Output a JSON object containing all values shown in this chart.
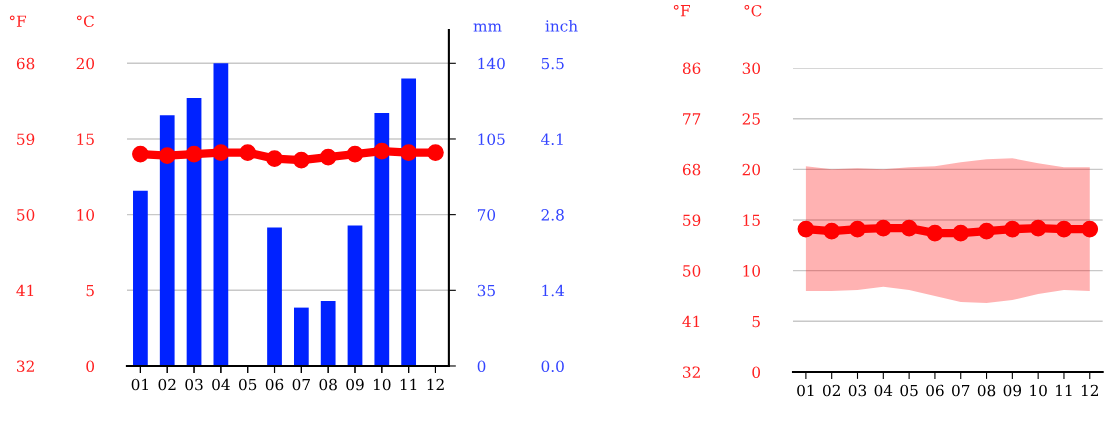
{
  "chart_data": [
    {
      "type": "bar",
      "categories": [
        "01",
        "02",
        "03",
        "04",
        "05",
        "06",
        "07",
        "08",
        "09",
        "10",
        "11",
        "12"
      ],
      "series": [
        {
          "axis": "y2",
          "color": "#0022ff",
          "values": [
            81,
            116,
            124,
            140,
            null,
            64,
            27,
            30,
            65,
            117,
            133,
            null
          ]
        }
      ],
      "y2label": "mm",
      "y2lim": [
        0,
        155.4
      ],
      "y2ticks": [
        0,
        35,
        70,
        105,
        140
      ],
      "y3label": "inch",
      "y3lim": [
        0,
        6.118
      ],
      "y3ticks": [
        {
          "value": 0,
          "label": "0.0"
        },
        {
          "value": 1.378,
          "label": "1.4"
        },
        {
          "value": 2.756,
          "label": "2.8"
        },
        {
          "value": 4.134,
          "label": "4.1"
        },
        {
          "value": 5.512,
          "label": "5.5"
        }
      ],
      "grid": "y",
      "tick_labels": "y"
    },
    {
      "type": "line",
      "categories": [
        "01",
        "02",
        "03",
        "04",
        "05",
        "06",
        "07",
        "08",
        "09",
        "10",
        "11",
        "12"
      ],
      "series": [
        {
          "color": "#ff0000",
          "marker": "circle",
          "values": [
            14.0,
            13.9,
            14.0,
            14.1,
            14.1,
            13.7,
            13.6,
            13.8,
            14.0,
            14.2,
            14.1,
            14.1
          ]
        }
      ],
      "ylabel": "°C",
      "ylim": [
        0,
        22.2
      ],
      "yticks": [
        0,
        5,
        10,
        15,
        20
      ],
      "y3label": "°F",
      "y3lim": [
        32,
        71.96
      ],
      "y3ticks": [
        32,
        41,
        50,
        59,
        68
      ]
    },
    {
      "type": "line",
      "categories": [
        "01",
        "02",
        "03",
        "04",
        "05",
        "06",
        "07",
        "08",
        "09",
        "10",
        "11",
        "12"
      ],
      "series": [
        {
          "color": "#ff0000",
          "marker": "circle",
          "values": [
            14.1,
            13.9,
            14.1,
            14.2,
            14.2,
            13.7,
            13.7,
            13.9,
            14.1,
            14.2,
            14.1,
            14.1
          ],
          "lower": [
            8.0,
            8.0,
            8.1,
            8.4,
            8.1,
            7.5,
            6.9,
            6.8,
            7.1,
            7.7,
            8.1,
            8.0
          ],
          "upper": [
            20.3,
            20.0,
            20.1,
            20.0,
            20.2,
            20.3,
            20.7,
            21.0,
            21.1,
            20.6,
            20.2,
            20.2
          ]
        }
      ],
      "ylabel": "°C",
      "ylim": [
        0,
        30
      ],
      "yticks": [
        0,
        5,
        10,
        15,
        20,
        25,
        30
      ],
      "y3label": "°F",
      "y3lim": [
        32,
        86
      ],
      "y3ticks": [
        32,
        41,
        50,
        59,
        68,
        77,
        86
      ],
      "grid": "y"
    }
  ]
}
